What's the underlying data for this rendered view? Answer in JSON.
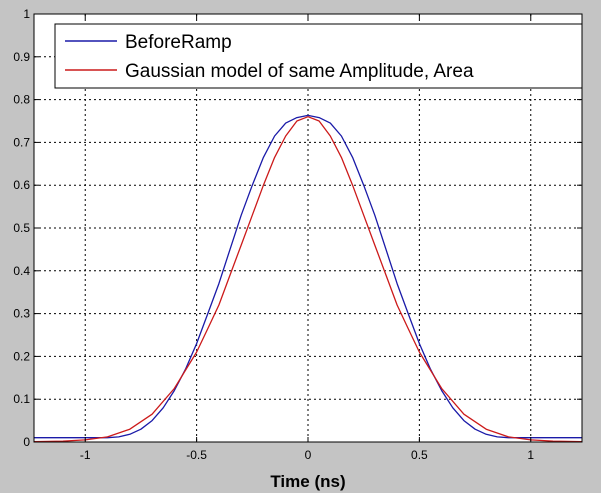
{
  "chart_data": {
    "type": "line",
    "title": "",
    "xlabel": "Time (ns)",
    "ylabel": "",
    "xlim": [
      -1.23,
      1.23
    ],
    "ylim": [
      0,
      1
    ],
    "grid": true,
    "legend_position": "top-left",
    "x_ticks": [
      -1,
      -0.5,
      0,
      0.5,
      1
    ],
    "x_tick_labels": [
      "-1",
      "-0.5",
      "0",
      "0.5",
      "1"
    ],
    "y_ticks": [
      0,
      0.1,
      0.2,
      0.3,
      0.4,
      0.5,
      0.6,
      0.7,
      0.8,
      0.9,
      1
    ],
    "y_tick_labels": [
      "0",
      "0.1",
      "0.2",
      "0.3",
      "0.4",
      "0.5",
      "0.6",
      "0.7",
      "0.8",
      "0.9",
      "1"
    ],
    "series": [
      {
        "name": "BeforeRamp",
        "color": "#1a1aa8",
        "x": [
          -1.23,
          -1.0,
          -0.9,
          -0.85,
          -0.8,
          -0.75,
          -0.7,
          -0.65,
          -0.6,
          -0.55,
          -0.5,
          -0.45,
          -0.4,
          -0.35,
          -0.3,
          -0.25,
          -0.2,
          -0.15,
          -0.1,
          -0.05,
          0.0,
          0.05,
          0.1,
          0.15,
          0.2,
          0.25,
          0.3,
          0.35,
          0.4,
          0.45,
          0.5,
          0.55,
          0.6,
          0.65,
          0.7,
          0.75,
          0.8,
          0.85,
          0.9,
          1.0,
          1.23
        ],
        "y": [
          0.01,
          0.01,
          0.01,
          0.012,
          0.018,
          0.03,
          0.05,
          0.08,
          0.12,
          0.17,
          0.23,
          0.3,
          0.37,
          0.45,
          0.53,
          0.6,
          0.665,
          0.715,
          0.745,
          0.758,
          0.763,
          0.758,
          0.745,
          0.715,
          0.665,
          0.6,
          0.53,
          0.45,
          0.37,
          0.3,
          0.23,
          0.17,
          0.12,
          0.08,
          0.05,
          0.03,
          0.018,
          0.012,
          0.01,
          0.01,
          0.01
        ]
      },
      {
        "name": "Gaussian model of same Amplitude, Area",
        "color": "#cc1a1a",
        "x": [
          -1.23,
          -1.1,
          -1.0,
          -0.9,
          -0.8,
          -0.7,
          -0.6,
          -0.5,
          -0.45,
          -0.4,
          -0.35,
          -0.3,
          -0.25,
          -0.2,
          -0.15,
          -0.1,
          -0.05,
          0.0,
          0.05,
          0.1,
          0.15,
          0.2,
          0.25,
          0.3,
          0.35,
          0.4,
          0.45,
          0.5,
          0.6,
          0.7,
          0.8,
          0.9,
          1.0,
          1.1,
          1.23
        ],
        "y": [
          0.001,
          0.002,
          0.005,
          0.012,
          0.03,
          0.065,
          0.125,
          0.21,
          0.265,
          0.32,
          0.39,
          0.46,
          0.53,
          0.6,
          0.665,
          0.715,
          0.75,
          0.76,
          0.75,
          0.715,
          0.665,
          0.6,
          0.53,
          0.46,
          0.39,
          0.32,
          0.265,
          0.21,
          0.125,
          0.065,
          0.03,
          0.012,
          0.005,
          0.002,
          0.001
        ]
      }
    ]
  }
}
